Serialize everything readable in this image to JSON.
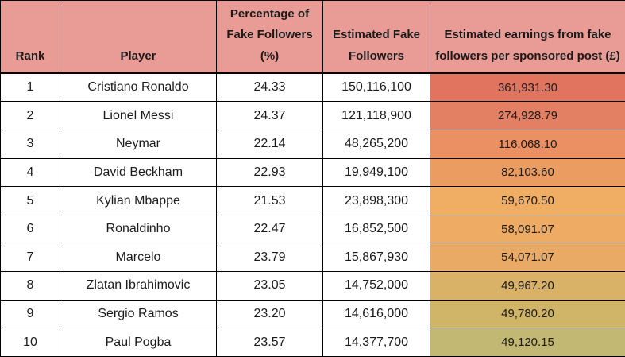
{
  "colors": {
    "header_bg": "#e99b95",
    "border": "#000000",
    "row_bg": "#ffffff",
    "text": "#1b1b1b"
  },
  "table": {
    "columns": [
      {
        "id": "rank",
        "label": "Rank"
      },
      {
        "id": "player",
        "label": "Player"
      },
      {
        "id": "pct_fake",
        "label": "Percentage of Fake Followers (%)"
      },
      {
        "id": "est_fake",
        "label": "Estimated Fake Followers"
      },
      {
        "id": "earnings",
        "label": "Estimated earnings from fake followers per sponsored post (£)"
      }
    ],
    "rows": [
      {
        "rank": "1",
        "player": "Cristiano Ronaldo",
        "pct_fake": "24.33",
        "est_fake": "150,116,100",
        "earnings": "361,931.30",
        "earnings_bg": "#e0745e"
      },
      {
        "rank": "2",
        "player": "Lionel Messi",
        "pct_fake": "24.37",
        "est_fake": "121,118,900",
        "earnings": "274,928.79",
        "earnings_bg": "#e37f63"
      },
      {
        "rank": "3",
        "player": "Neymar",
        "pct_fake": "22.14",
        "est_fake": "48,265,200",
        "earnings": "116,068.10",
        "earnings_bg": "#ea9063"
      },
      {
        "rank": "4",
        "player": "David Beckham",
        "pct_fake": "22.93",
        "est_fake": "19,949,100",
        "earnings": "82,103.60",
        "earnings_bg": "#eb9d61"
      },
      {
        "rank": "5",
        "player": "Kylian Mbappe",
        "pct_fake": "21.53",
        "est_fake": "23,898,300",
        "earnings": "59,670.50",
        "earnings_bg": "#efae63"
      },
      {
        "rank": "6",
        "player": "Ronaldinho",
        "pct_fake": "22.47",
        "est_fake": "16,852,500",
        "earnings": "58,091.07",
        "earnings_bg": "#edab63"
      },
      {
        "rank": "7",
        "player": "Marcelo",
        "pct_fake": "23.79",
        "est_fake": "15,867,930",
        "earnings": "54,071.07",
        "earnings_bg": "#e9aa66"
      },
      {
        "rank": "8",
        "player": "Zlatan Ibrahimovic",
        "pct_fake": "23.05",
        "est_fake": "14,752,000",
        "earnings": "49,967.20",
        "earnings_bg": "#d9b268"
      },
      {
        "rank": "9",
        "player": "Sergio Ramos",
        "pct_fake": "23.20",
        "est_fake": "14,616,000",
        "earnings": "49,780.20",
        "earnings_bg": "#d0b467"
      },
      {
        "rank": "10",
        "player": "Paul Pogba",
        "pct_fake": "23.57",
        "est_fake": "14,377,700",
        "earnings": "49,120.15",
        "earnings_bg": "#c2b873"
      }
    ]
  },
  "chart_data": {
    "type": "table",
    "title": "",
    "columns": [
      "Rank",
      "Player",
      "Percentage of Fake Followers (%)",
      "Estimated Fake Followers",
      "Estimated earnings from fake followers per sponsored post (£)"
    ],
    "rows": [
      [
        1,
        "Cristiano Ronaldo",
        24.33,
        150116100,
        361931.3
      ],
      [
        2,
        "Lionel Messi",
        24.37,
        121118900,
        274928.79
      ],
      [
        3,
        "Neymar",
        22.14,
        48265200,
        116068.1
      ],
      [
        4,
        "David Beckham",
        22.93,
        19949100,
        82103.6
      ],
      [
        5,
        "Kylian Mbappe",
        21.53,
        23898300,
        59670.5
      ],
      [
        6,
        "Ronaldinho",
        22.47,
        16852500,
        58091.07
      ],
      [
        7,
        "Marcelo",
        23.79,
        15867930,
        54071.07
      ],
      [
        8,
        "Zlatan Ibrahimovic",
        23.05,
        14752000,
        49967.2
      ],
      [
        9,
        "Sergio Ramos",
        23.2,
        14616000,
        49780.2
      ],
      [
        10,
        "Paul Pogba",
        23.57,
        14377700,
        49120.15
      ]
    ],
    "notes": "Last column uses a red-to-olive conditional-formatting color scale (highest earnings = red, lowest = olive green).",
    "legend_position": "none",
    "grid": true
  }
}
